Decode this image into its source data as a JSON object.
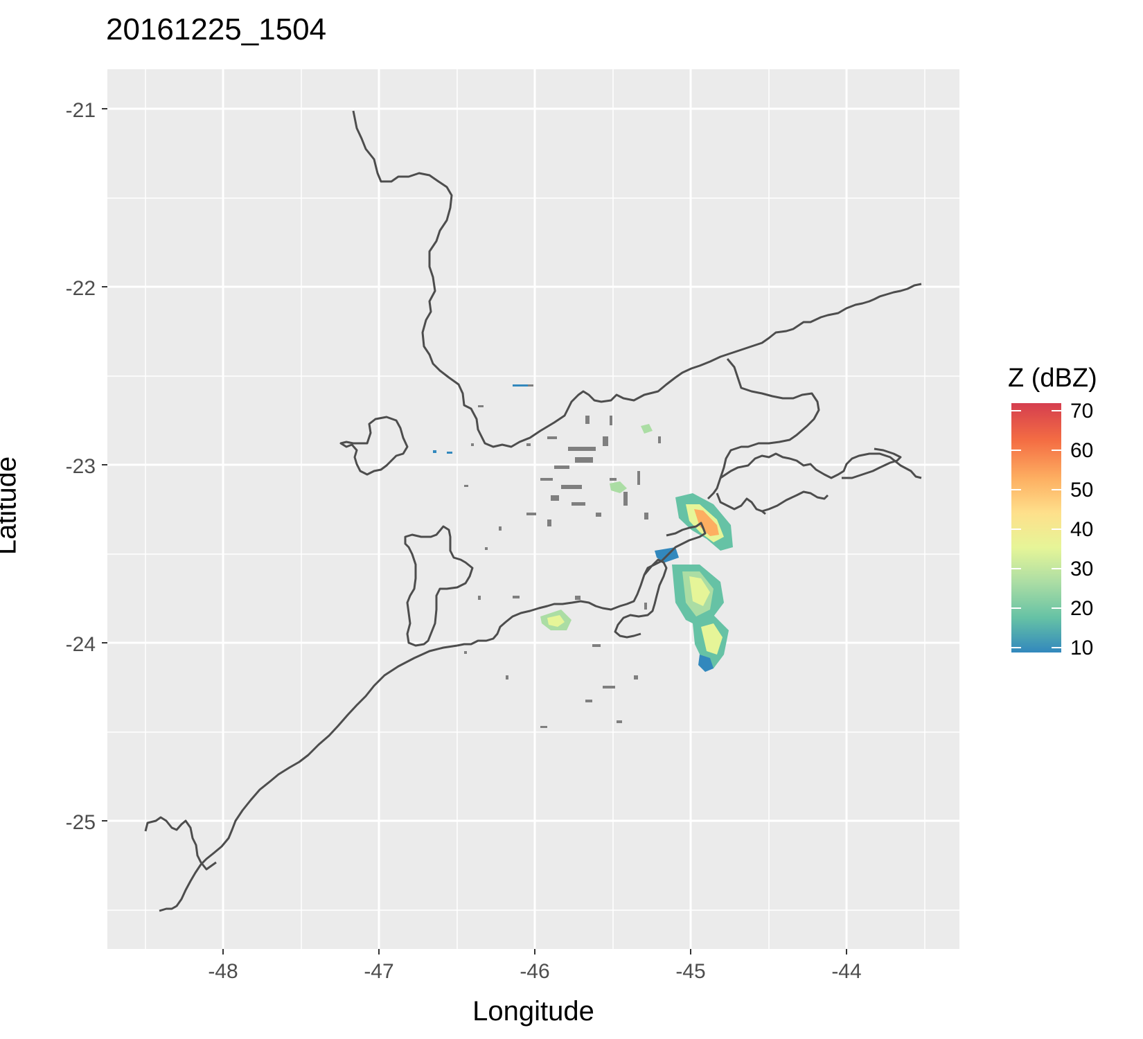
{
  "title": "20161225_1504",
  "x_axis": {
    "label": "Longitude",
    "ticks": [
      "-48",
      "-47",
      "-46",
      "-45",
      "-44"
    ]
  },
  "y_axis": {
    "label": "Latitude",
    "ticks": [
      "-21",
      "-22",
      "-23",
      "-24",
      "-25"
    ]
  },
  "legend": {
    "title": "Z (dBZ)",
    "ticks": [
      "70",
      "60",
      "50",
      "40",
      "30",
      "20",
      "10"
    ],
    "colors": [
      "#d53e4f",
      "#f46d43",
      "#fdae61",
      "#fee08b",
      "#e6f598",
      "#abdda4",
      "#66c2a5",
      "#3288bd"
    ]
  },
  "colors": {
    "panel": "#ebebeb",
    "grid": "#ffffff",
    "outline": "#4d4d4d",
    "no_data": "#7f7f7f"
  }
}
